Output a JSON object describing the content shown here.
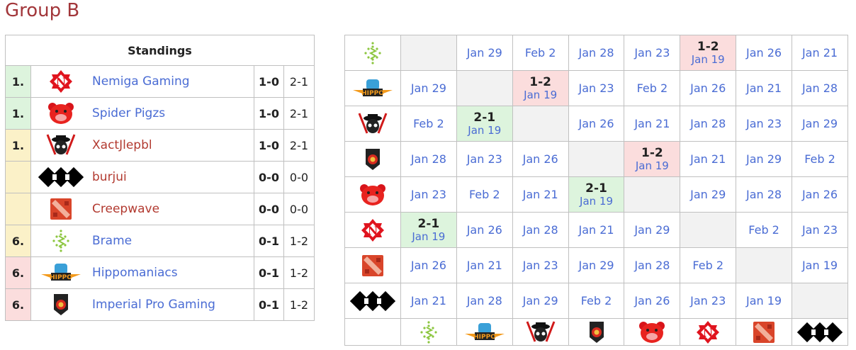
{
  "title": "Group B",
  "standings": {
    "header": "Standings",
    "rows": [
      {
        "rank": "1.",
        "rank_color": "green",
        "team": "Nemiga Gaming",
        "logo": "nemiga-logo",
        "link": "blue",
        "series": "1-0",
        "maps": "2-1"
      },
      {
        "rank": "1.",
        "rank_color": "green",
        "team": "Spider Pigzs",
        "logo": "pig-logo",
        "link": "blue",
        "series": "1-0",
        "maps": "2-1"
      },
      {
        "rank": "1.",
        "rank_color": "yellow",
        "team": "XactJlepbl",
        "logo": "skull-logo",
        "link": "red",
        "series": "1-0",
        "maps": "2-1"
      },
      {
        "rank": "",
        "rank_color": "yellow",
        "team": "burjui",
        "logo": "burjui-logo",
        "link": "red",
        "series": "0-0",
        "maps": "0-0"
      },
      {
        "rank": "",
        "rank_color": "yellow",
        "team": "Creepwave",
        "logo": "dota-logo",
        "link": "red",
        "series": "0-0",
        "maps": "0-0"
      },
      {
        "rank": "6.",
        "rank_color": "yellow",
        "team": "Brame",
        "logo": "brame-logo",
        "link": "blue",
        "series": "0-1",
        "maps": "1-2"
      },
      {
        "rank": "6.",
        "rank_color": "red",
        "team": "Hippomaniacs",
        "logo": "hippo-logo",
        "link": "blue",
        "series": "0-1",
        "maps": "1-2"
      },
      {
        "rank": "6.",
        "rank_color": "red",
        "team": "Imperial Pro Gaming",
        "logo": "imperial-logo",
        "link": "blue",
        "series": "0-1",
        "maps": "1-2"
      }
    ]
  },
  "matrix": {
    "teams": [
      "brame-logo",
      "hippo-logo",
      "skull-logo",
      "imperial-logo",
      "pig-logo",
      "nemiga-logo",
      "dota-logo",
      "burjui-logo"
    ],
    "rows": [
      [
        null,
        "Jan 29",
        "Feb 2",
        "Jan 28",
        "Jan 23",
        {
          "score": "1-2",
          "date": "Jan 19",
          "result": "loss"
        },
        "Jan 26",
        "Jan 21"
      ],
      [
        "Jan 29",
        null,
        {
          "score": "1-2",
          "date": "Jan 19",
          "result": "loss"
        },
        "Jan 23",
        "Feb 2",
        "Jan 26",
        "Jan 21",
        "Jan 28"
      ],
      [
        "Feb 2",
        {
          "score": "2-1",
          "date": "Jan 19",
          "result": "win"
        },
        null,
        "Jan 26",
        "Jan 21",
        "Jan 28",
        "Jan 23",
        "Jan 29"
      ],
      [
        "Jan 28",
        "Jan 23",
        "Jan 26",
        null,
        {
          "score": "1-2",
          "date": "Jan 19",
          "result": "loss"
        },
        "Jan 21",
        "Jan 29",
        "Feb 2"
      ],
      [
        "Jan 23",
        "Feb 2",
        "Jan 21",
        {
          "score": "2-1",
          "date": "Jan 19",
          "result": "win"
        },
        null,
        "Jan 29",
        "Jan 28",
        "Jan 26"
      ],
      [
        {
          "score": "2-1",
          "date": "Jan 19",
          "result": "win"
        },
        "Jan 26",
        "Jan 28",
        "Jan 21",
        "Jan 29",
        null,
        "Feb 2",
        "Jan 23"
      ],
      [
        "Jan 26",
        "Jan 21",
        "Jan 23",
        "Jan 29",
        "Jan 28",
        "Feb 2",
        null,
        "Jan 19"
      ],
      [
        "Jan 21",
        "Jan 28",
        "Jan 29",
        "Feb 2",
        "Jan 26",
        "Jan 23",
        "Jan 19",
        null
      ]
    ]
  },
  "colors": {
    "win": "#ddf4dd",
    "loss": "#fbdddd",
    "draw": "#fbf1c8",
    "link": "#4a6cd4",
    "redlink": "#b23a30"
  }
}
